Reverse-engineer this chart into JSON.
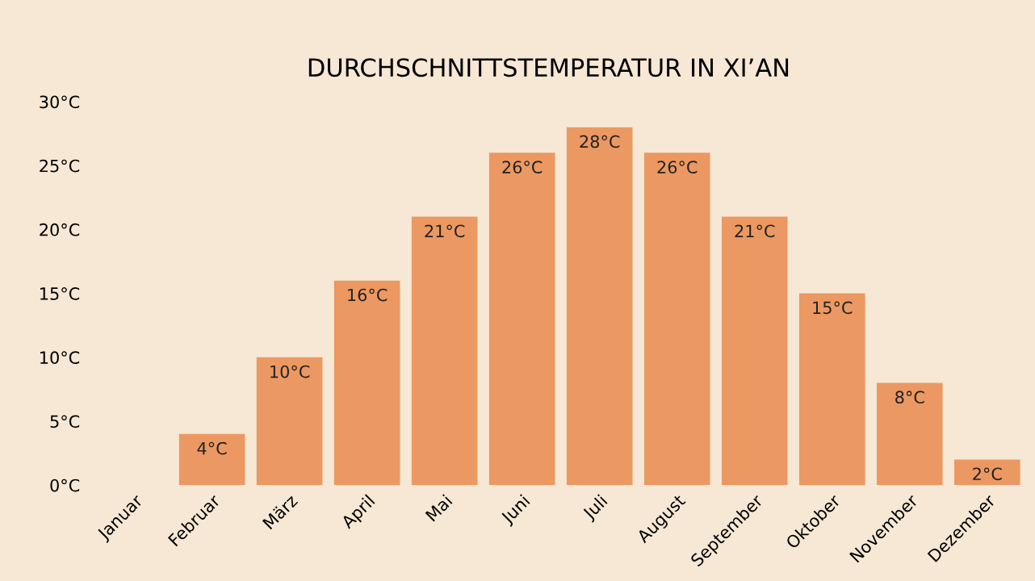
{
  "chart_data": {
    "type": "bar",
    "title": "DURCHSCHNITTSTEMPERATUR IN XI’AN",
    "categories": [
      "Januar",
      "Februar",
      "März",
      "April",
      "Mai",
      "Juni",
      "Juli",
      "August",
      "September",
      "Oktober",
      "November",
      "Dezember"
    ],
    "values": [
      0,
      4,
      10,
      16,
      21,
      26,
      28,
      26,
      21,
      15,
      8,
      2
    ],
    "value_labels": [
      null,
      "4°C",
      "10°C",
      "16°C",
      "21°C",
      "26°C",
      "28°C",
      "26°C",
      "21°C",
      "15°C",
      "8°C",
      "2°C"
    ],
    "color": "#ec9862",
    "ylim": [
      0,
      30
    ],
    "yticks": [
      {
        "value": 0,
        "label": "0°C"
      },
      {
        "value": 5,
        "label": "5°C"
      },
      {
        "value": 10,
        "label": "10°C"
      },
      {
        "value": 15,
        "label": "15°C"
      },
      {
        "value": 20,
        "label": "20°C"
      },
      {
        "value": 25,
        "label": "25°C"
      },
      {
        "value": 30,
        "label": "30°C"
      }
    ],
    "grid": false,
    "legend": false
  }
}
